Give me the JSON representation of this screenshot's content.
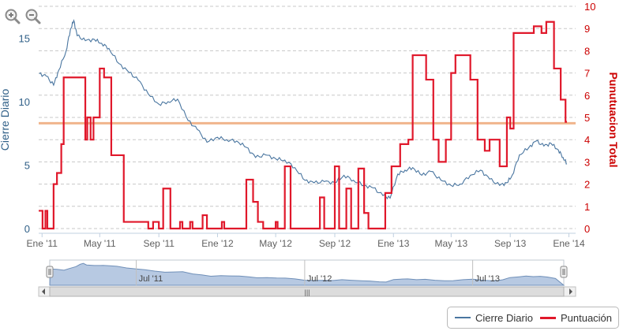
{
  "toolbar": {
    "zoom_in_label": "zoom in",
    "zoom_out_label": "zoom out"
  },
  "legend": {
    "items": [
      "Cierre Diario",
      "Puntuación"
    ]
  },
  "navigator": {
    "labels": [
      "Jul '11",
      "Jul '12",
      "Jul '13"
    ],
    "scroll_grip": "|||"
  },
  "chart_data": {
    "type": "line",
    "grid": "horizontal dashed",
    "legend_position": "bottom-right",
    "x": {
      "type": "date",
      "range": [
        "2010-12-25",
        "2014-01-15"
      ],
      "tick_labels": [
        "Ene '11",
        "May '11",
        "Sep '11",
        "Ene '12",
        "May '12",
        "Sep '12",
        "Ene '13",
        "May '13",
        "Sep '13",
        "Ene '14"
      ],
      "tick_dates": [
        "2011-01-01",
        "2011-05-01",
        "2011-09-01",
        "2012-01-01",
        "2012-05-01",
        "2012-09-01",
        "2013-01-01",
        "2013-05-01",
        "2013-09-01",
        "2014-01-01"
      ]
    },
    "y_left": {
      "label": "Cierre Diario",
      "range": [
        0,
        17
      ],
      "ticks": [
        0,
        5,
        10,
        15
      ],
      "color": "#2f5f87"
    },
    "y_right": {
      "label": "Punutuacion Total",
      "range": [
        0,
        10
      ],
      "ticks": [
        0,
        1,
        2,
        3,
        4,
        5,
        6,
        7,
        8,
        9,
        10
      ],
      "color": "#cc0000"
    },
    "reference_line": {
      "axis": "left",
      "value": 8.3,
      "color": "#f0b48c"
    },
    "series": [
      {
        "name": "Cierre Diario",
        "axis": "left",
        "color": "#4a76a0",
        "shape": "line",
        "points": [
          [
            "2010-12-26",
            12.2
          ],
          [
            "2011-01-10",
            12.0
          ],
          [
            "2011-01-25",
            11.3
          ],
          [
            "2011-02-05",
            12.5
          ],
          [
            "2011-02-20",
            14.0
          ],
          [
            "2011-03-01",
            15.7
          ],
          [
            "2011-03-08",
            16.4
          ],
          [
            "2011-03-15",
            15.2
          ],
          [
            "2011-04-01",
            14.8
          ],
          [
            "2011-04-20",
            14.9
          ],
          [
            "2011-05-05",
            14.6
          ],
          [
            "2011-05-20",
            14.2
          ],
          [
            "2011-06-10",
            13.0
          ],
          [
            "2011-07-01",
            12.3
          ],
          [
            "2011-07-20",
            11.7
          ],
          [
            "2011-08-10",
            10.6
          ],
          [
            "2011-09-01",
            9.8
          ],
          [
            "2011-09-20",
            10.0
          ],
          [
            "2011-10-10",
            10.2
          ],
          [
            "2011-11-01",
            8.5
          ],
          [
            "2011-11-20",
            7.8
          ],
          [
            "2011-12-10",
            6.8
          ],
          [
            "2012-01-01",
            7.2
          ],
          [
            "2012-01-20",
            7.0
          ],
          [
            "2012-02-10",
            6.9
          ],
          [
            "2012-03-01",
            6.4
          ],
          [
            "2012-03-20",
            5.6
          ],
          [
            "2012-04-10",
            5.8
          ],
          [
            "2012-05-01",
            5.5
          ],
          [
            "2012-05-20",
            5.4
          ],
          [
            "2012-06-10",
            4.8
          ],
          [
            "2012-07-01",
            3.8
          ],
          [
            "2012-07-20",
            3.6
          ],
          [
            "2012-08-10",
            3.7
          ],
          [
            "2012-09-01",
            3.6
          ],
          [
            "2012-09-20",
            4.2
          ],
          [
            "2012-10-10",
            3.8
          ],
          [
            "2012-11-01",
            3.4
          ],
          [
            "2012-11-20",
            3.2
          ],
          [
            "2012-12-10",
            2.6
          ],
          [
            "2012-12-25",
            2.4
          ],
          [
            "2013-01-10",
            4.3
          ],
          [
            "2013-01-25",
            4.6
          ],
          [
            "2013-02-10",
            4.8
          ],
          [
            "2013-03-01",
            4.2
          ],
          [
            "2013-03-20",
            4.5
          ],
          [
            "2013-04-10",
            3.8
          ],
          [
            "2013-05-01",
            3.4
          ],
          [
            "2013-05-20",
            3.5
          ],
          [
            "2013-06-10",
            4.2
          ],
          [
            "2013-07-01",
            4.6
          ],
          [
            "2013-07-20",
            3.9
          ],
          [
            "2013-08-10",
            3.4
          ],
          [
            "2013-08-25",
            3.6
          ],
          [
            "2013-09-05",
            4.2
          ],
          [
            "2013-09-20",
            5.8
          ],
          [
            "2013-10-10",
            6.4
          ],
          [
            "2013-10-25",
            6.9
          ],
          [
            "2013-11-10",
            6.5
          ],
          [
            "2013-11-25",
            6.7
          ],
          [
            "2013-12-10",
            6.2
          ],
          [
            "2013-12-20",
            5.6
          ],
          [
            "2013-12-28",
            5.1
          ]
        ]
      },
      {
        "name": "Puntuación",
        "axis": "right",
        "color": "#e0182b",
        "shape": "step",
        "points": [
          [
            "2010-12-25",
            0.8
          ],
          [
            "2011-01-02",
            0.0
          ],
          [
            "2011-01-08",
            0.8
          ],
          [
            "2011-01-12",
            0.0
          ],
          [
            "2011-01-25",
            2.0
          ],
          [
            "2011-02-01",
            2.5
          ],
          [
            "2011-02-10",
            3.8
          ],
          [
            "2011-02-15",
            6.8
          ],
          [
            "2011-04-01",
            4.0
          ],
          [
            "2011-04-05",
            5.0
          ],
          [
            "2011-04-12",
            4.0
          ],
          [
            "2011-04-18",
            5.0
          ],
          [
            "2011-05-01",
            7.2
          ],
          [
            "2011-05-10",
            6.8
          ],
          [
            "2011-05-25",
            3.3
          ],
          [
            "2011-06-20",
            0.3
          ],
          [
            "2011-08-10",
            0.0
          ],
          [
            "2011-08-20",
            0.3
          ],
          [
            "2011-09-01",
            0.0
          ],
          [
            "2011-09-10",
            1.8
          ],
          [
            "2011-09-25",
            0.0
          ],
          [
            "2011-10-15",
            0.3
          ],
          [
            "2011-10-20",
            0.0
          ],
          [
            "2011-11-05",
            0.3
          ],
          [
            "2011-11-10",
            0.0
          ],
          [
            "2011-12-01",
            0.6
          ],
          [
            "2011-12-10",
            0.0
          ],
          [
            "2012-01-10",
            0.3
          ],
          [
            "2012-01-15",
            0.0
          ],
          [
            "2012-03-01",
            2.2
          ],
          [
            "2012-03-15",
            1.2
          ],
          [
            "2012-03-25",
            0.3
          ],
          [
            "2012-04-05",
            0.0
          ],
          [
            "2012-05-01",
            0.3
          ],
          [
            "2012-05-05",
            0.0
          ],
          [
            "2012-05-20",
            2.8
          ],
          [
            "2012-06-01",
            0.0
          ],
          [
            "2012-06-15",
            0.0
          ],
          [
            "2012-08-01",
            1.4
          ],
          [
            "2012-08-10",
            0.0
          ],
          [
            "2012-09-01",
            2.8
          ],
          [
            "2012-09-10",
            0.0
          ],
          [
            "2012-09-25",
            1.8
          ],
          [
            "2012-10-05",
            0.0
          ],
          [
            "2012-10-15",
            0.0
          ],
          [
            "2012-10-20",
            2.7
          ],
          [
            "2012-11-01",
            0.7
          ],
          [
            "2012-11-10",
            0.0
          ],
          [
            "2012-12-15",
            1.6
          ],
          [
            "2012-12-28",
            2.8
          ],
          [
            "2013-01-15",
            3.8
          ],
          [
            "2013-02-01",
            4.0
          ],
          [
            "2013-02-10",
            7.8
          ],
          [
            "2013-03-10",
            6.7
          ],
          [
            "2013-03-25",
            4.0
          ],
          [
            "2013-04-05",
            3.0
          ],
          [
            "2013-04-20",
            4.0
          ],
          [
            "2013-05-01",
            7.0
          ],
          [
            "2013-05-10",
            7.8
          ],
          [
            "2013-06-10",
            6.7
          ],
          [
            "2013-06-25",
            4.0
          ],
          [
            "2013-07-10",
            3.5
          ],
          [
            "2013-07-20",
            4.0
          ],
          [
            "2013-08-10",
            2.8
          ],
          [
            "2013-08-25",
            5.0
          ],
          [
            "2013-09-01",
            4.5
          ],
          [
            "2013-09-08",
            8.8
          ],
          [
            "2013-10-01",
            8.8
          ],
          [
            "2013-10-15",
            8.8
          ],
          [
            "2013-10-20",
            9.1
          ],
          [
            "2013-11-05",
            8.8
          ],
          [
            "2013-11-15",
            9.3
          ],
          [
            "2013-12-01",
            7.2
          ],
          [
            "2013-12-15",
            5.8
          ],
          [
            "2013-12-25",
            4.8
          ],
          [
            "2013-12-28",
            4.8
          ]
        ]
      }
    ]
  }
}
